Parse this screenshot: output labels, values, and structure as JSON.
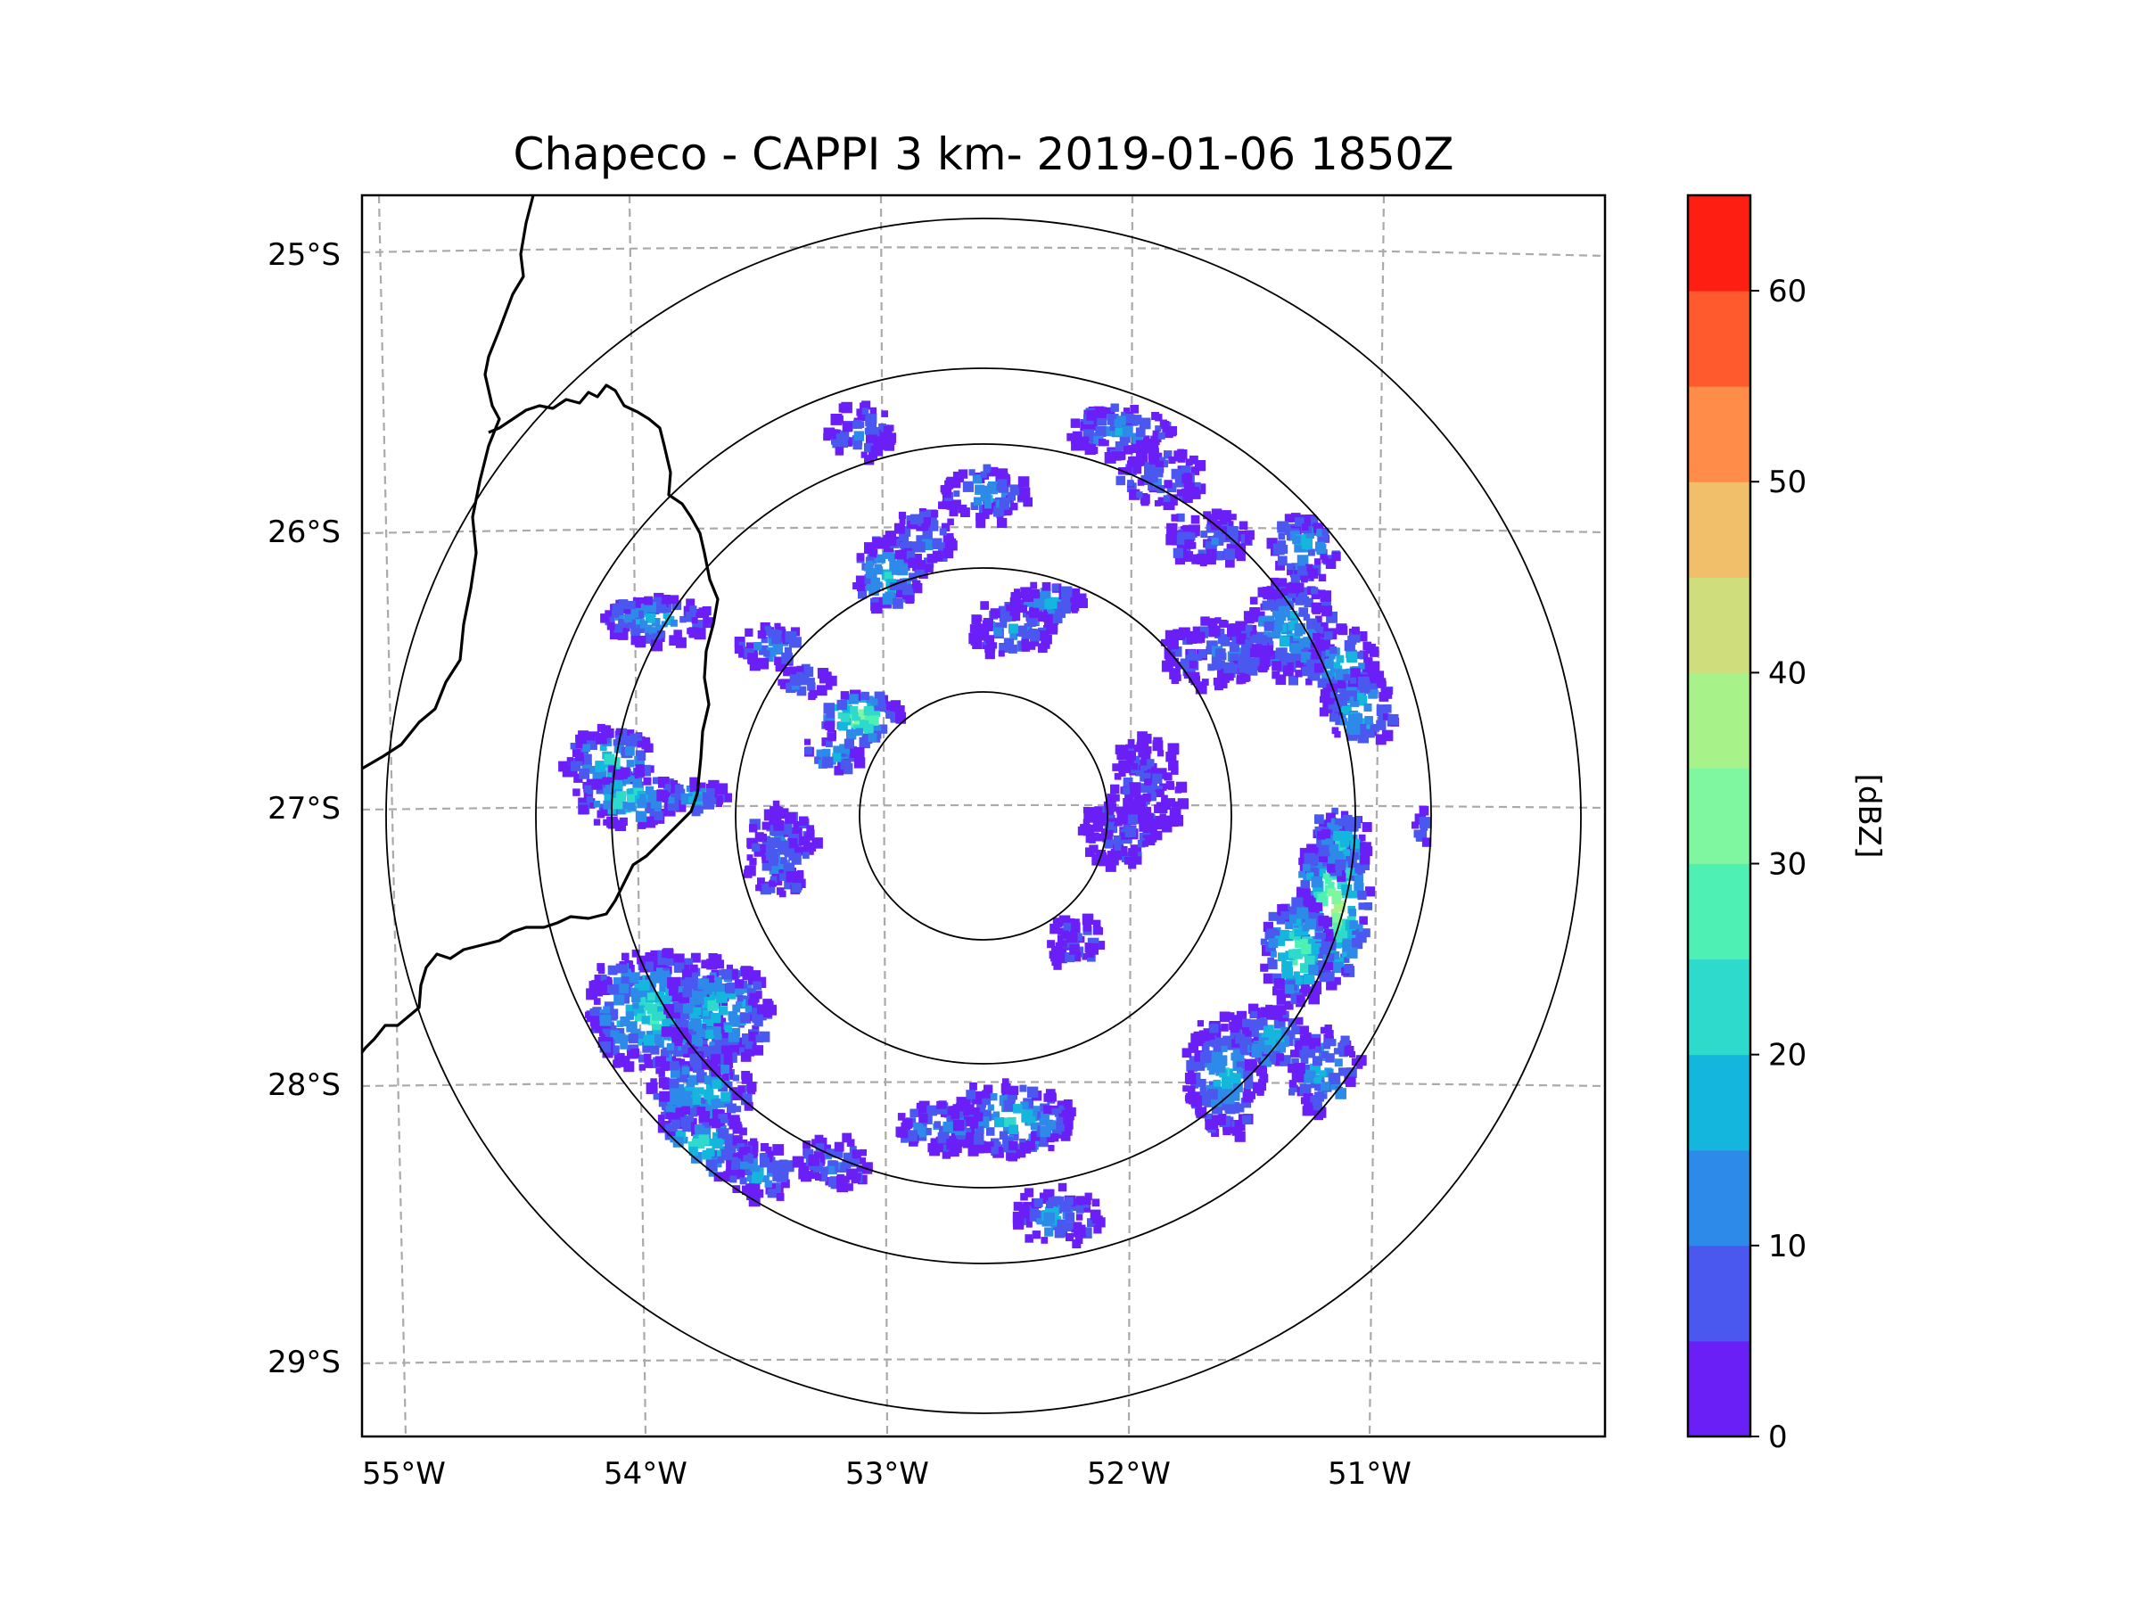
{
  "title": "Chapeco - CAPPI 3 km- 2019-01-06 1850Z",
  "map": {
    "lat_labels": [
      "25°S",
      "26°S",
      "27°S",
      "28°S",
      "29°S"
    ],
    "lon_labels": [
      "55°W",
      "54°W",
      "53°W",
      "52°W",
      "51°W"
    ],
    "radar_site": "Chapeco",
    "range_rings": 5
  },
  "colorbar": {
    "label": "[dBZ]",
    "ticks": [
      "0",
      "10",
      "20",
      "30",
      "40",
      "50",
      "60"
    ],
    "min": 0,
    "max": 65,
    "step": 5,
    "colors": [
      "#6b1ff7",
      "#4a58f0",
      "#2d8ae8",
      "#14b6de",
      "#2ddacc",
      "#4ff0b4",
      "#7ff7a0",
      "#a8f28a",
      "#d0dd7c",
      "#f1be6a",
      "#ff8c48",
      "#ff5a2e",
      "#ff1f12"
    ]
  },
  "chart_data": {
    "type": "heatmap",
    "title": "Chapeco - CAPPI 3 km- 2019-01-06 1850Z",
    "variable": "reflectivity",
    "units": "dBZ",
    "x_axis": "longitude",
    "y_axis": "latitude",
    "x_ticks": [
      "55°W",
      "54°W",
      "53°W",
      "52°W",
      "51°W"
    ],
    "y_ticks": [
      "25°S",
      "26°S",
      "27°S",
      "28°S",
      "29°S"
    ],
    "value_range": [
      0,
      65
    ]
  }
}
